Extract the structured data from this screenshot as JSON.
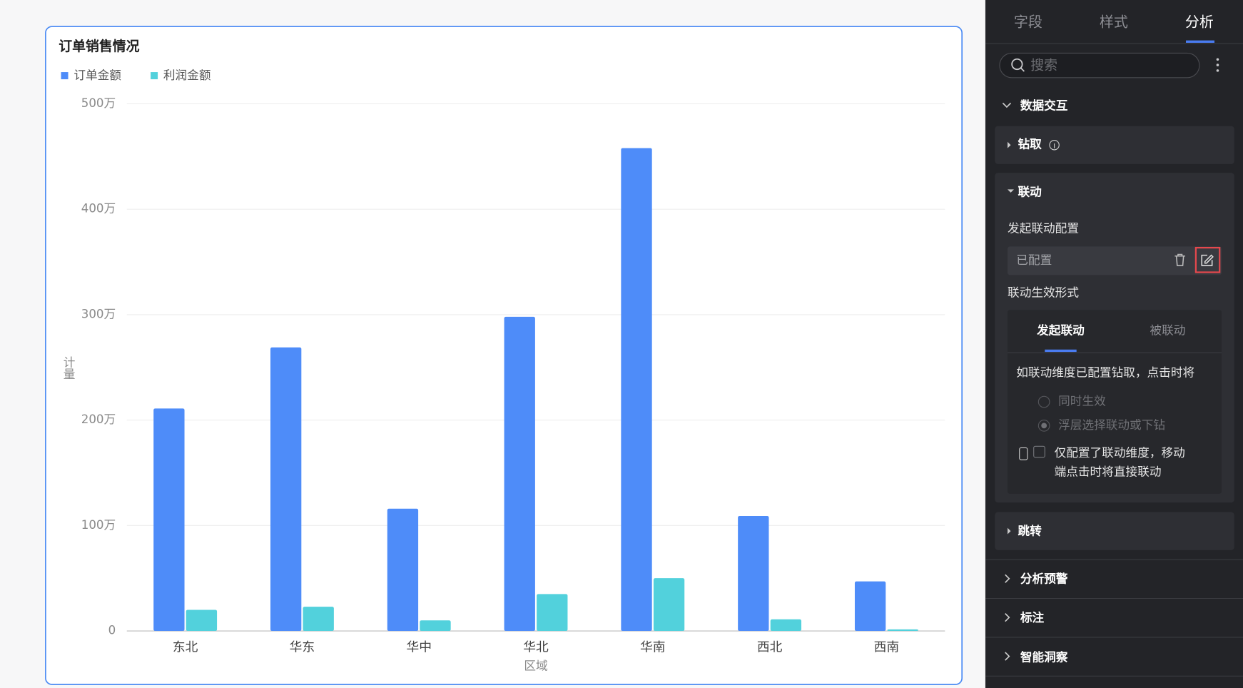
{
  "chart_data": {
    "type": "bar",
    "title": "订单销售情况",
    "categories": [
      "东北",
      "华东",
      "华中",
      "华北",
      "华南",
      "西北",
      "西南"
    ],
    "series": [
      {
        "name": "订单金额",
        "color": "#4e8cf9",
        "values": [
          211,
          269,
          116,
          298,
          458,
          109,
          47
        ]
      },
      {
        "name": "利润金额",
        "color": "#52d1dc",
        "values": [
          20,
          23,
          10,
          35,
          50,
          11,
          1.5
        ]
      }
    ],
    "x_label": "区域",
    "y_label": "计量",
    "ylim": [
      0,
      500
    ],
    "yticks": [
      0,
      {
        "value": 100,
        "label": "100万"
      },
      {
        "value": 200,
        "label": "200万"
      },
      {
        "value": 300,
        "label": "300万"
      },
      {
        "value": 400,
        "label": "400万"
      },
      {
        "value": 500,
        "label": "500万"
      }
    ],
    "grid": true
  },
  "panel": {
    "tabs": [
      "字段",
      "样式",
      "分析"
    ],
    "search": "搜索",
    "group": "数据交互",
    "drill": "钻取",
    "linkage": "联动",
    "config_label": "发起联动配置",
    "config_status": "已配置",
    "effect_label": "联动生效形式",
    "effect_tabs": [
      "发起联动",
      "被联动"
    ],
    "hint": "如联动维度已配置钻取，点击时将",
    "options": [
      "同时生效",
      "浮层选择联动或下钻"
    ],
    "mobile_note": [
      "仅配置了联动维度，移动",
      "端点击时将直接联动"
    ],
    "jump": "跳转",
    "sections": [
      "分析预警",
      "标注",
      "智能洞察"
    ]
  }
}
